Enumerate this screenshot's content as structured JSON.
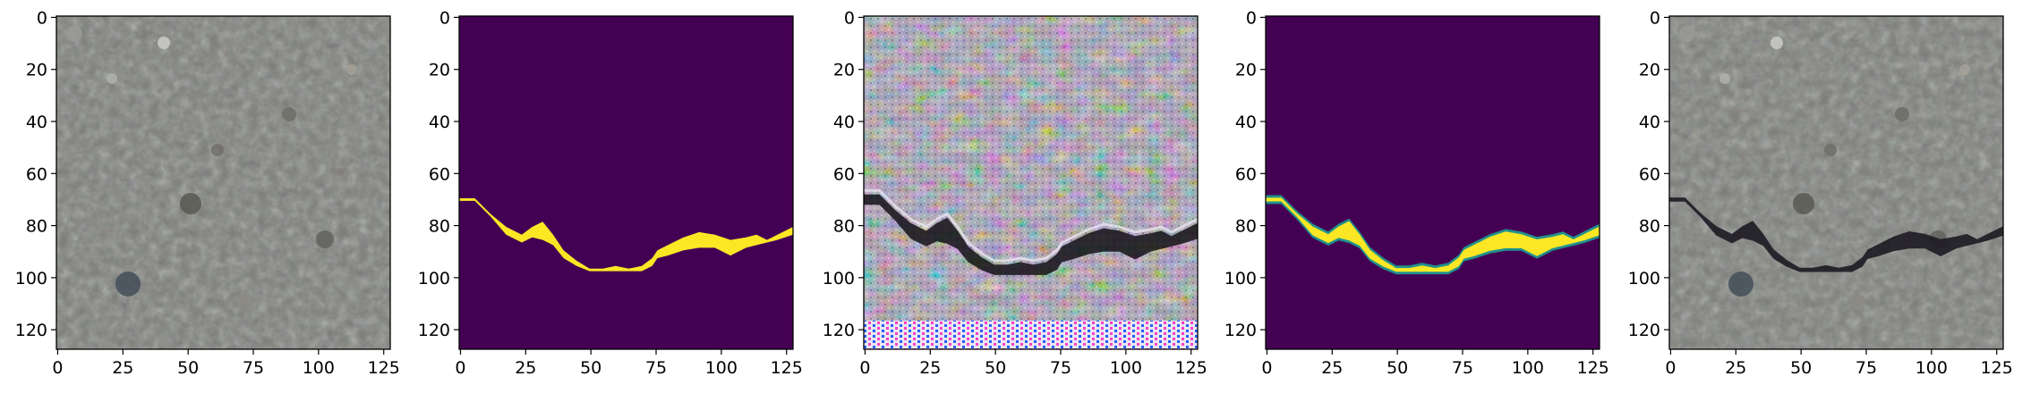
{
  "figure": {
    "panel_count": 5,
    "x_ticks": [
      "0",
      "25",
      "50",
      "75",
      "100",
      "125"
    ],
    "y_ticks": [
      "0",
      "20",
      "40",
      "60",
      "80",
      "100",
      "120"
    ],
    "panels": [
      {
        "kind": "photo",
        "name": "concrete-texture-image"
      },
      {
        "kind": "mask",
        "name": "crack-mask-binary"
      },
      {
        "kind": "synthetic",
        "name": "generated-noisy-image"
      },
      {
        "kind": "mask-smooth",
        "name": "crack-mask-smoothed"
      },
      {
        "kind": "overlay",
        "name": "concrete-with-crack-image"
      }
    ],
    "colors": {
      "mask_background": "#440154",
      "mask_foreground": "#fde725",
      "concrete_base": "#7b7d78",
      "axis": "#000000"
    }
  }
}
